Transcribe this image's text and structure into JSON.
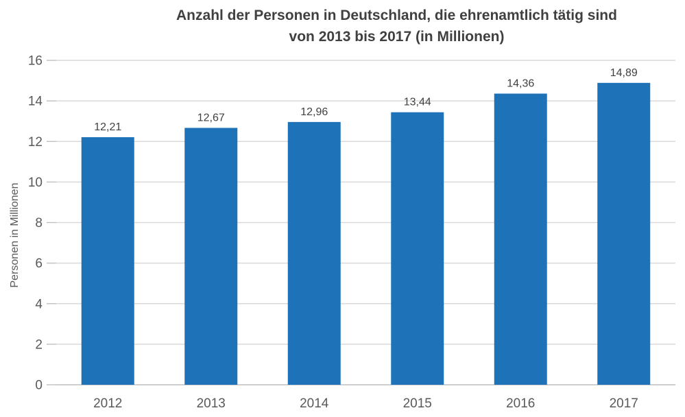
{
  "title": {
    "line1": "Anzahl der Personen in Deutschland, die ehrenamtlich tätig sind",
    "line2": "von 2013 bis 2017 (in Millionen)"
  },
  "chart_data": {
    "type": "bar",
    "title": "Anzahl der Personen in Deutschland, die ehrenamtlich tätig sind von 2013 bis 2017 (in Millionen)",
    "xlabel": "",
    "ylabel": "Personen in Millionen",
    "categories": [
      "2012",
      "2013",
      "2014",
      "2015",
      "2016",
      "2017"
    ],
    "values": [
      12.21,
      12.67,
      12.96,
      13.44,
      14.36,
      14.89
    ],
    "value_labels": [
      "12,21",
      "12,67",
      "12,96",
      "13,44",
      "14,36",
      "14,89"
    ],
    "ylim": [
      0,
      16
    ],
    "yticks": [
      0,
      2,
      4,
      6,
      8,
      10,
      12,
      14,
      16
    ],
    "grid": true,
    "legend": false,
    "bar_color": "#1E73B8",
    "gridline_color": "#D9D9D9",
    "tick_color": "#BFBFBF",
    "axis_line_color": "#BFBFBF",
    "text_color": "#595959",
    "label_color": "#404040"
  }
}
